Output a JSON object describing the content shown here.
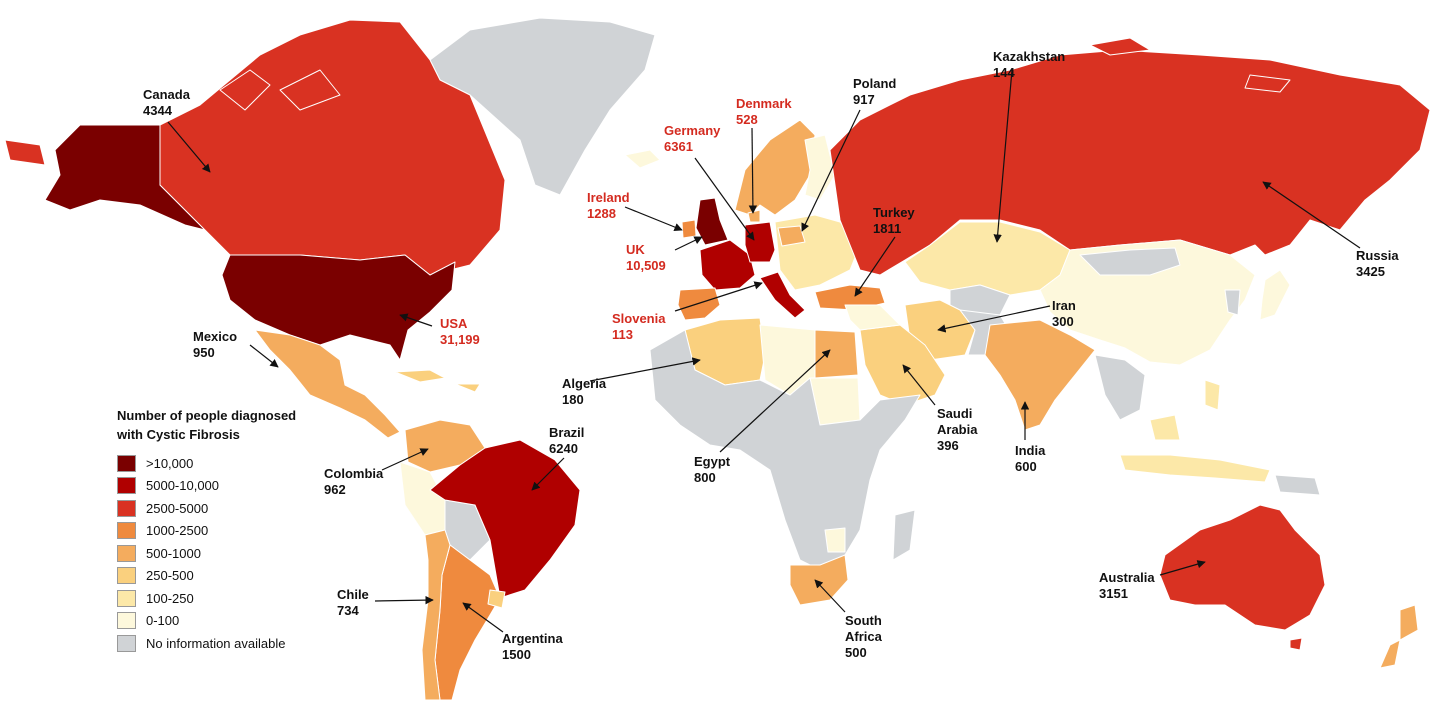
{
  "legend": {
    "title_line1": "Number of people diagnosed",
    "title_line2": "with Cystic Fibrosis",
    "items": [
      {
        "label": ">10,000",
        "color": "#7a0000"
      },
      {
        "label": "5000-10,000",
        "color": "#b00000"
      },
      {
        "label": "2500-5000",
        "color": "#d93222"
      },
      {
        "label": "1000-2500",
        "color": "#ef8a3e"
      },
      {
        "label": "500-1000",
        "color": "#f4ac5e"
      },
      {
        "label": "250-500",
        "color": "#fad07e"
      },
      {
        "label": "100-250",
        "color": "#fce8a8"
      },
      {
        "label": "0-100",
        "color": "#fdf8dc"
      },
      {
        "label": "No information available",
        "color": "#d0d3d6"
      }
    ]
  },
  "countries": {
    "canada": {
      "name": "Canada",
      "value": "4344"
    },
    "usa": {
      "name": "USA",
      "value": "31,199"
    },
    "mexico": {
      "name": "Mexico",
      "value": "950"
    },
    "colombia": {
      "name": "Colombia",
      "value": "962"
    },
    "brazil": {
      "name": "Brazil",
      "value": "6240"
    },
    "chile": {
      "name": "Chile",
      "value": "734"
    },
    "argentina": {
      "name": "Argentina",
      "value": "1500"
    },
    "ireland": {
      "name": "Ireland",
      "value": "1288"
    },
    "uk": {
      "name": "UK",
      "value": "10,509"
    },
    "germany": {
      "name": "Germany",
      "value": "6361"
    },
    "denmark": {
      "name": "Denmark",
      "value": "528"
    },
    "slovenia": {
      "name": "Slovenia",
      "value": "113"
    },
    "poland": {
      "name": "Poland",
      "value": "917"
    },
    "turkey": {
      "name": "Turkey",
      "value": "1811"
    },
    "kazakhstan": {
      "name": "Kazakhstan",
      "value": "144"
    },
    "russia": {
      "name": "Russia",
      "value": "3425"
    },
    "iran": {
      "name": "Iran",
      "value": "300"
    },
    "algeria": {
      "name": "Algeria",
      "value": "180"
    },
    "egypt": {
      "name": "Egypt",
      "value": "800"
    },
    "saudi_arabia": {
      "name_line1": "Saudi",
      "name_line2": "Arabia",
      "value": "396"
    },
    "india": {
      "name": "India",
      "value": "600"
    },
    "south_africa": {
      "name_line1": "South",
      "name_line2": "Africa",
      "value": "500"
    },
    "australia": {
      "name": "Australia",
      "value": "3151"
    }
  }
}
